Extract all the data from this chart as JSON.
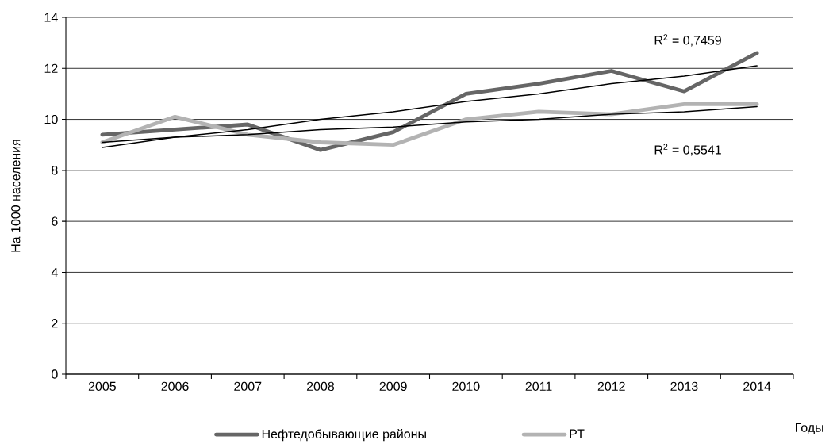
{
  "chart_data": {
    "type": "line",
    "xlabel": "Годы",
    "ylabel": "На 1000 населения",
    "categories": [
      "2005",
      "2006",
      "2007",
      "2008",
      "2009",
      "2010",
      "2011",
      "2012",
      "2013",
      "2014"
    ],
    "series": [
      {
        "name": "Нефтедобывающие районы",
        "color": "#666666",
        "values": [
          9.4,
          9.6,
          9.8,
          8.8,
          9.5,
          11.0,
          11.4,
          11.9,
          11.1,
          12.6
        ]
      },
      {
        "name": "РТ",
        "color": "#b3b3b3",
        "values": [
          9.1,
          10.1,
          9.4,
          9.1,
          9.0,
          10.0,
          10.3,
          10.2,
          10.6,
          10.6
        ]
      },
      {
        "type": "line",
        "color": "#000000",
        "values": [
          8.9,
          9.3,
          9.6,
          10.0,
          10.3,
          10.7,
          11.0,
          11.4,
          11.7,
          12.1
        ]
      },
      {
        "type": "line",
        "color": "#000000",
        "values": [
          9.1,
          9.3,
          9.4,
          9.6,
          9.7,
          9.9,
          10.0,
          10.2,
          10.3,
          10.5
        ]
      }
    ],
    "annotations": [
      "R$^{2}$ = 0,7459",
      "R$^{2}$ = 0,5541"
    ],
    "ylim": [
      0,
      14
    ],
    "yticks": [
      0,
      2,
      4,
      6,
      8,
      10,
      12,
      14
    ],
    "grid": "y",
    "legend": "bottom",
    "line_style": "solid"
  }
}
